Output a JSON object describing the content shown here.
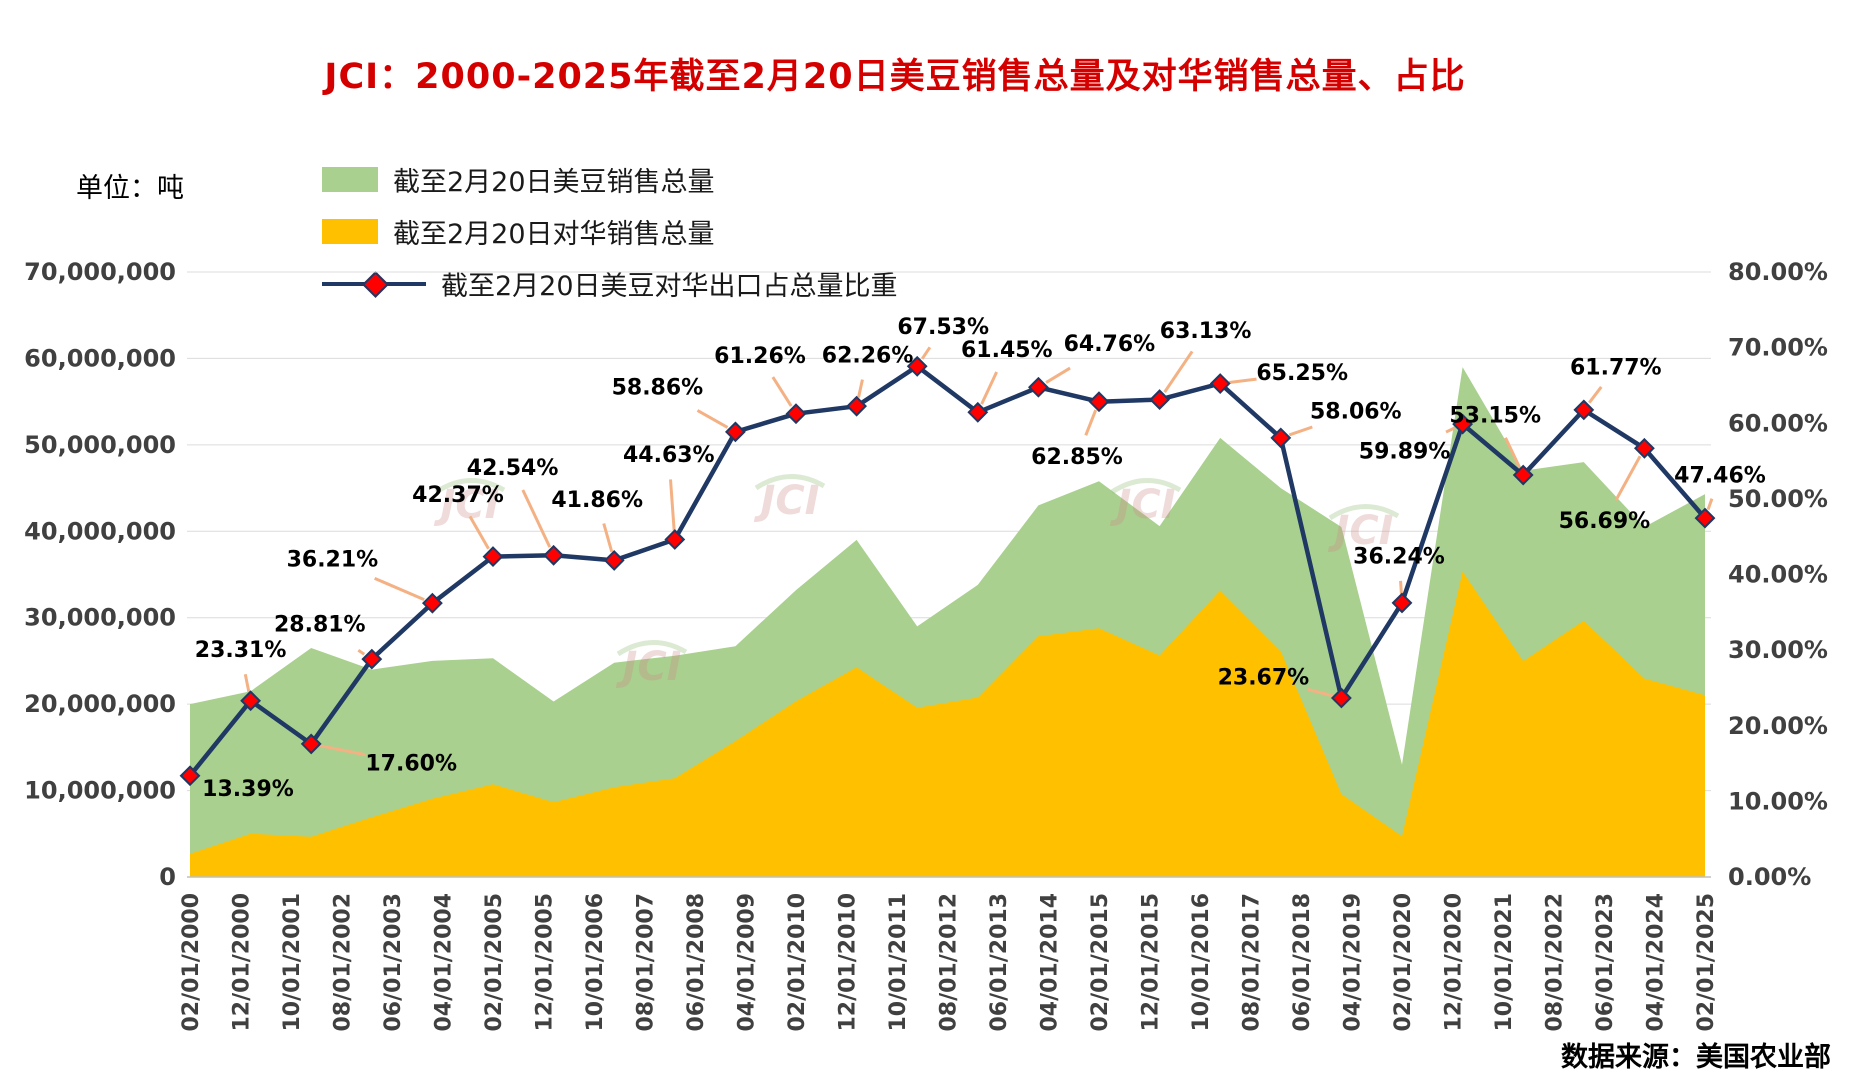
{
  "chart_data": {
    "type": "area+line combo",
    "title": "JCI：2000-2025年截至2月20日美豆销售总量及对华销售总量、占比",
    "unit_label": "单位：吨",
    "source": "数据来源：美国农业部",
    "watermark": "JCI",
    "legend_position": "top-left",
    "grid": true,
    "colors": {
      "title": "#D40000",
      "leader": "#F4B183",
      "grid": "#DCDCDC",
      "axis_text": "#404040"
    },
    "left_axis": {
      "min": 0,
      "max": 70000000,
      "tick_labels": [
        "0",
        "10,000,000",
        "20,000,000",
        "30,000,000",
        "40,000,000",
        "50,000,000",
        "60,000,000",
        "70,000,000"
      ]
    },
    "right_axis": {
      "min": 0,
      "max": 80,
      "tick_labels": [
        "0.00%",
        "10.00%",
        "20.00%",
        "30.00%",
        "40.00%",
        "50.00%",
        "60.00%",
        "70.00%",
        "80.00%"
      ]
    },
    "x_tick_labels": [
      "02/01/2000",
      "12/01/2000",
      "10/01/2001",
      "08/01/2002",
      "06/01/2003",
      "04/01/2004",
      "02/01/2005",
      "12/01/2005",
      "10/01/2006",
      "08/01/2007",
      "06/01/2008",
      "04/01/2009",
      "02/01/2010",
      "12/01/2010",
      "10/01/2011",
      "08/01/2012",
      "06/01/2013",
      "04/01/2014",
      "02/01/2015",
      "12/01/2015",
      "10/01/2016",
      "08/01/2017",
      "06/01/2018",
      "04/01/2019",
      "02/01/2020",
      "12/01/2020",
      "10/01/2021",
      "08/01/2022",
      "06/01/2023",
      "04/01/2024",
      "02/01/2025"
    ],
    "series": [
      {
        "name": "截至2月20日美豆销售总量",
        "type": "area",
        "axis": "left",
        "color": "#A9D08E",
        "values": [
          20000000,
          21500000,
          26500000,
          24000000,
          25000000,
          25300000,
          20300000,
          24800000,
          25600000,
          26700000,
          33200000,
          39000000,
          29000000,
          33800000,
          43000000,
          45800000,
          40600000,
          50800000,
          45000000,
          40500000,
          13000000,
          59000000,
          47000000,
          48000000,
          40500000,
          44300000
        ]
      },
      {
        "name": "截至2月20日对华销售总量",
        "type": "area",
        "axis": "left",
        "color": "#FFC000",
        "values": [
          2680000,
          5010000,
          4660000,
          6910000,
          9060000,
          10720000,
          8640000,
          10380000,
          11430000,
          15720000,
          20340000,
          24280000,
          19580000,
          20770000,
          27850000,
          28790000,
          25630000,
          33150000,
          26130000,
          9590000,
          4710000,
          35340000,
          24980000,
          29650000,
          22960000,
          21030000
        ]
      },
      {
        "name": "截至2月20日美豆对华出口占总量比重",
        "type": "line",
        "axis": "right",
        "color": "#1F3864",
        "marker": "diamond",
        "marker_color": "#FF0000",
        "values": [
          13.39,
          23.31,
          17.6,
          28.81,
          36.21,
          42.37,
          42.54,
          41.86,
          44.63,
          58.86,
          61.26,
          62.26,
          67.53,
          61.45,
          64.76,
          62.85,
          63.13,
          65.25,
          58.06,
          23.67,
          36.24,
          59.89,
          53.15,
          61.77,
          56.69,
          47.46
        ],
        "point_labels": [
          {
            "text": "13.39%",
            "dx": 58,
            "dy": 14,
            "leader": false
          },
          {
            "text": "23.31%",
            "dx": -10,
            "dy": -50,
            "leader": true
          },
          {
            "text": "17.60%",
            "dx": 100,
            "dy": 20,
            "leader": true
          },
          {
            "text": "28.81%",
            "dx": -52,
            "dy": -34,
            "leader": true
          },
          {
            "text": "36.21%",
            "dx": -100,
            "dy": -43,
            "leader": true
          },
          {
            "text": "42.37%",
            "dx": -35,
            "dy": -61,
            "leader": true
          },
          {
            "text": "42.54%",
            "dx": -41,
            "dy": -87,
            "leader": true
          },
          {
            "text": "41.86%",
            "dx": -17,
            "dy": -60,
            "leader": true
          },
          {
            "text": "44.63%",
            "dx": -6,
            "dy": -84,
            "leader": true
          },
          {
            "text": "58.86%",
            "dx": -78,
            "dy": -44,
            "leader": true
          },
          {
            "text": "61.26%",
            "dx": -36,
            "dy": -57,
            "leader": true
          },
          {
            "text": "62.26%",
            "dx": 11,
            "dy": -50,
            "leader": true
          },
          {
            "text": "67.53%",
            "dx": 26,
            "dy": -39,
            "leader": true
          },
          {
            "text": "61.45%",
            "dx": 29,
            "dy": -62,
            "leader": true
          },
          {
            "text": "64.76%",
            "dx": 71,
            "dy": -43,
            "leader": true
          },
          {
            "text": "62.85%",
            "dx": -22,
            "dy": 56,
            "leader": true
          },
          {
            "text": "63.13%",
            "dx": 46,
            "dy": -68,
            "leader": true
          },
          {
            "text": "65.25%",
            "dx": 82,
            "dy": -10,
            "leader": true
          },
          {
            "text": "58.06%",
            "dx": 75,
            "dy": -26,
            "leader": true
          },
          {
            "text": "23.67%",
            "dx": -78,
            "dy": -20,
            "leader": true
          },
          {
            "text": "36.24%",
            "dx": -3,
            "dy": -46,
            "leader": true
          },
          {
            "text": "59.89%",
            "dx": -58,
            "dy": 28,
            "leader": true
          },
          {
            "text": "53.15%",
            "dx": -28,
            "dy": -59,
            "leader": true
          },
          {
            "text": "61.77%",
            "dx": 32,
            "dy": -42,
            "leader": true
          },
          {
            "text": "56.69%",
            "dx": -40,
            "dy": 73,
            "leader": true
          },
          {
            "text": "47.46%",
            "dx": 15,
            "dy": -42,
            "leader": true
          }
        ]
      }
    ]
  }
}
